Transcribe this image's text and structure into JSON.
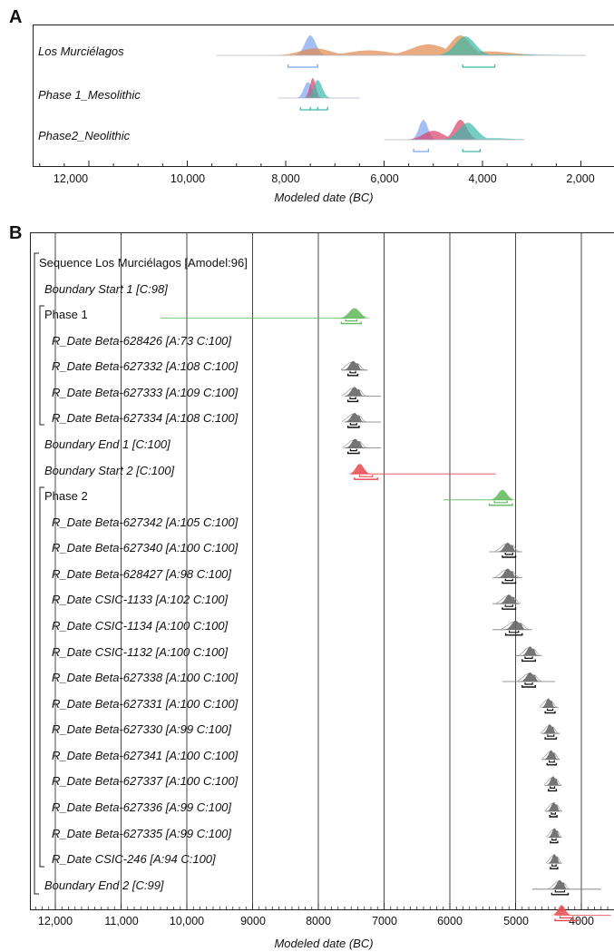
{
  "chart_data": [
    {
      "panel": "A",
      "type": "area",
      "xlabel": "Modeled date (BC)",
      "xlim": [
        13000,
        1700
      ],
      "x_ticks": [
        12000,
        10000,
        8000,
        6000,
        4000,
        2000
      ],
      "x_tick_labels": [
        "12,000",
        "10,000",
        "8,000",
        "6,000",
        "4,000",
        "2,000"
      ],
      "colors": {
        "early": "#7fa4f0",
        "mid": "#e0874a",
        "late": "#3cb8a8",
        "red": "#d9406a"
      },
      "rows": [
        {
          "label": "Los Murciélagos",
          "extent": [
            9400,
            1900
          ],
          "series": [
            {
              "color": "early",
              "peaks": [
                [
                  7500,
                  1.0,
                  110
                ]
              ]
            },
            {
              "color": "mid",
              "peaks": [
                [
                  7400,
                  0.35,
                  300
                ],
                [
                  6300,
                  0.25,
                  400
                ],
                [
                  5100,
                  0.55,
                  350
                ],
                [
                  4450,
                  1.0,
                  200
                ],
                [
                  3900,
                  0.2,
                  500
                ]
              ]
            },
            {
              "color": "late",
              "peaks": [
                [
                  4350,
                  0.95,
                  200
                ],
                [
                  3500,
                  0.05,
                  800
                ]
              ]
            }
          ],
          "ranges": [
            {
              "color": "early",
              "from": 7950,
              "to": 7350
            },
            {
              "color": "late",
              "from": 4400,
              "to": 3750
            }
          ]
        },
        {
          "label": "Phase 1_Mesolithic",
          "extent": [
            8150,
            6500
          ],
          "series": [
            {
              "color": "early",
              "peaks": [
                [
                  7550,
                  0.8,
                  80
                ]
              ]
            },
            {
              "color": "red",
              "peaks": [
                [
                  7450,
                  1.0,
                  60
                ]
              ]
            },
            {
              "color": "late",
              "peaks": [
                [
                  7350,
                  0.9,
                  90
                ]
              ]
            }
          ],
          "ranges": [
            {
              "color": "late",
              "from": 7700,
              "to": 7150,
              "ticks": [
                7500,
                7350
              ]
            }
          ]
        },
        {
          "label": "Phase2_Neolithic",
          "extent": [
            6000,
            3150
          ],
          "series": [
            {
              "color": "early",
              "peaks": [
                [
                  5200,
                  1.0,
                  90
                ]
              ]
            },
            {
              "color": "red",
              "peaks": [
                [
                  5000,
                  0.45,
                  200
                ],
                [
                  4450,
                  1.0,
                  130
                ]
              ]
            },
            {
              "color": "late",
              "peaks": [
                [
                  4300,
                  0.85,
                  180
                ],
                [
                  3800,
                  0.08,
                  400
                ]
              ]
            }
          ],
          "ranges": [
            {
              "color": "early",
              "from": 5400,
              "to": 5100
            },
            {
              "color": "late",
              "from": 4400,
              "to": 4050
            }
          ]
        }
      ]
    },
    {
      "panel": "B",
      "type": "area",
      "xlabel": "Modeled date (BC)",
      "xlim": [
        12350,
        3500
      ],
      "x_ticks": [
        12000,
        11000,
        10000,
        9000,
        8000,
        7000,
        6000,
        5000,
        4000
      ],
      "x_tick_labels": [
        "12,000",
        "11,000",
        "10,000",
        "9000",
        "8000",
        "7000",
        "6000",
        "5000",
        "4000"
      ],
      "gridlines": true,
      "rows": [
        {
          "label": "Sequence Los Murciélagos [Amodel:96]",
          "italic": false,
          "indent": 0,
          "kind": "header"
        },
        {
          "label": "Boundary Start 1 [C:98]",
          "italic": true,
          "indent": 1,
          "kind": "boundary",
          "color": "#5fb85a",
          "peak": 7450,
          "width": 110,
          "line": [
            10400,
            7300
          ],
          "range": [
            7650,
            7350
          ]
        },
        {
          "label": "Phase 1",
          "italic": false,
          "indent": 1,
          "kind": "header"
        },
        {
          "label": "R_Date Beta-628426 [A:73 C:100]",
          "italic": true,
          "indent": 2,
          "kind": "date",
          "peak": 7470,
          "width": 70,
          "line": [
            7650,
            7250
          ],
          "range": [
            7550,
            7400
          ]
        },
        {
          "label": "R_Date Beta-627332 [A:108 C:100]",
          "italic": true,
          "indent": 2,
          "kind": "date",
          "peak": 7450,
          "width": 70,
          "line": [
            7600,
            7050
          ],
          "range": [
            7550,
            7400
          ]
        },
        {
          "label": "R_Date Beta-627333 [A:109 C:100]",
          "italic": true,
          "indent": 2,
          "kind": "date",
          "peak": 7450,
          "width": 70,
          "line": [
            7600,
            7050
          ],
          "range": [
            7550,
            7380
          ]
        },
        {
          "label": "R_Date Beta-627334 [A:108 C:100]",
          "italic": true,
          "indent": 2,
          "kind": "date",
          "peak": 7440,
          "width": 70,
          "line": [
            7600,
            7050
          ],
          "range": [
            7550,
            7380
          ]
        },
        {
          "label": "Boundary End 1 [C:100]",
          "italic": true,
          "indent": 1,
          "kind": "boundary",
          "color": "#e8474b",
          "peak": 7370,
          "width": 80,
          "line": [
            7500,
            5300
          ],
          "range": [
            7450,
            7100
          ]
        },
        {
          "label": "Boundary Start 2 [C:100]",
          "italic": true,
          "indent": 1,
          "kind": "boundary",
          "color": "#5fb85a",
          "peak": 5200,
          "width": 90,
          "line": [
            6100,
            5050
          ],
          "range": [
            5400,
            5050
          ]
        },
        {
          "label": "Phase 2",
          "italic": false,
          "indent": 1,
          "kind": "header"
        },
        {
          "label": "R_Date Beta-627342 [A:105 C:100]",
          "italic": true,
          "indent": 2,
          "kind": "date",
          "peak": 5120,
          "width": 70,
          "line": [
            5400,
            4900
          ],
          "range": [
            5200,
            5000
          ]
        },
        {
          "label": "R_Date Beta-627340 [A:100 C:100]",
          "italic": true,
          "indent": 2,
          "kind": "date",
          "peak": 5120,
          "width": 70,
          "line": [
            5350,
            4900
          ],
          "range": [
            5200,
            5000
          ]
        },
        {
          "label": "R_Date Beta-628427 [A:98 C:100]",
          "italic": true,
          "indent": 2,
          "kind": "date",
          "peak": 5100,
          "width": 70,
          "line": [
            5350,
            4950
          ],
          "range": [
            5200,
            5000
          ]
        },
        {
          "label": "R_Date CSIC-1133 [A:102 C:100]",
          "italic": true,
          "indent": 2,
          "kind": "date",
          "peak": 5000,
          "width": 80,
          "line": [
            5350,
            4750
          ],
          "range": [
            5150,
            4900
          ]
        },
        {
          "label": "R_Date CSIC-1134 [A:100 C:100]",
          "italic": true,
          "indent": 2,
          "kind": "date",
          "peak": 4780,
          "width": 60,
          "line": [
            5000,
            4600
          ],
          "range": [
            4900,
            4700
          ]
        },
        {
          "label": "R_Date CSIC-1132 [A:100 C:100]",
          "italic": true,
          "indent": 2,
          "kind": "date",
          "peak": 4780,
          "width": 70,
          "line": [
            5200,
            4400
          ],
          "range": [
            4900,
            4700
          ]
        },
        {
          "label": "R_Date Beta-627338 [A:100 C:100]",
          "italic": true,
          "indent": 2,
          "kind": "date",
          "peak": 4500,
          "width": 50,
          "line": [
            4600,
            4350
          ],
          "range": [
            4550,
            4400
          ]
        },
        {
          "label": "R_Date Beta-627331 [A:100 C:100]",
          "italic": true,
          "indent": 2,
          "kind": "date",
          "peak": 4480,
          "width": 50,
          "line": [
            4600,
            4330
          ],
          "range": [
            4550,
            4380
          ]
        },
        {
          "label": "R_Date Beta-627330 [A:99 C:100]",
          "italic": true,
          "indent": 2,
          "kind": "date",
          "peak": 4460,
          "width": 50,
          "line": [
            4600,
            4330
          ],
          "range": [
            4520,
            4380
          ]
        },
        {
          "label": "R_Date Beta-627341 [A:100 C:100]",
          "italic": true,
          "indent": 2,
          "kind": "date",
          "peak": 4430,
          "width": 50,
          "line": [
            4550,
            4300
          ],
          "range": [
            4500,
            4380
          ]
        },
        {
          "label": "R_Date Beta-627337 [A:100 C:100]",
          "italic": true,
          "indent": 2,
          "kind": "date",
          "peak": 4420,
          "width": 50,
          "line": [
            4550,
            4300
          ],
          "range": [
            4480,
            4370
          ]
        },
        {
          "label": "R_Date Beta-627336 [A:99 C:100]",
          "italic": true,
          "indent": 2,
          "kind": "date",
          "peak": 4410,
          "width": 45,
          "line": [
            4500,
            4300
          ],
          "range": [
            4470,
            4360
          ]
        },
        {
          "label": "R_Date Beta-627335 [A:99 C:100]",
          "italic": true,
          "indent": 2,
          "kind": "date",
          "peak": 4410,
          "width": 45,
          "line": [
            4500,
            4300
          ],
          "range": [
            4470,
            4360
          ]
        },
        {
          "label": "R_Date CSIC-246 [A:94 C:100]",
          "italic": true,
          "indent": 2,
          "kind": "date",
          "peak": 4330,
          "width": 60,
          "line": [
            4750,
            3700
          ],
          "range": [
            4450,
            4200
          ]
        },
        {
          "label": "Boundary End 2 [C:99]",
          "italic": true,
          "indent": 1,
          "kind": "boundary",
          "color": "#e8474b",
          "peak": 4300,
          "width": 70,
          "line": [
            4400,
            3550
          ],
          "range": [
            4400,
            4050
          ]
        }
      ]
    }
  ]
}
